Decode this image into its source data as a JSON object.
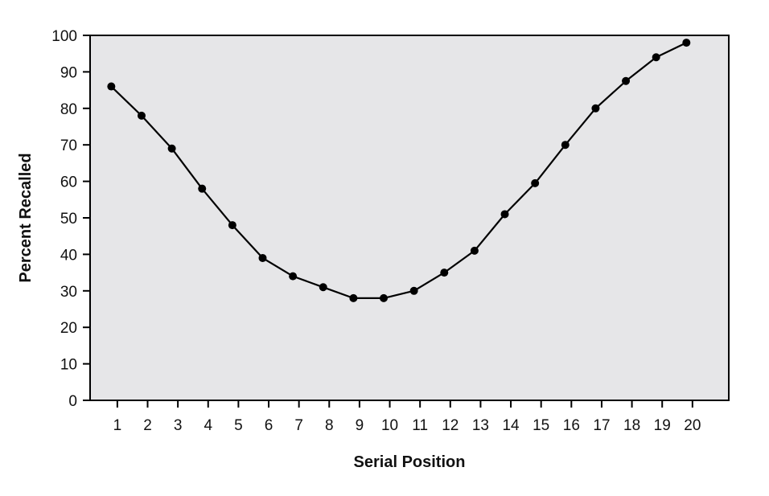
{
  "colors": {
    "plot_background": "#e6e6e8",
    "line": "#000000",
    "marker": "#000000",
    "frame": "#000000"
  },
  "chart_data": {
    "type": "line",
    "title": "",
    "xlabel": "Serial Position",
    "ylabel": "Percent Recalled",
    "xlim": [
      0.1,
      21.2
    ],
    "ylim": [
      0,
      100
    ],
    "x_ticks": [
      1,
      2,
      3,
      4,
      5,
      6,
      7,
      8,
      9,
      10,
      11,
      12,
      13,
      14,
      15,
      16,
      17,
      18,
      19,
      20
    ],
    "y_ticks": [
      0,
      10,
      20,
      30,
      40,
      50,
      60,
      70,
      80,
      90,
      100
    ],
    "grid": false,
    "legend": "none",
    "series": [
      {
        "x": [
          0.8,
          1.8,
          2.8,
          3.8,
          4.8,
          5.8,
          6.8,
          7.8,
          8.8,
          9.8,
          10.8,
          11.8,
          12.8,
          13.8,
          14.8,
          15.8,
          16.8,
          17.8,
          18.8,
          19.8
        ],
        "values": [
          86,
          78,
          69,
          58,
          48,
          39,
          34,
          31,
          28,
          28,
          30,
          35,
          41,
          51,
          59.5,
          70,
          80,
          87.5,
          94,
          98
        ]
      }
    ]
  }
}
